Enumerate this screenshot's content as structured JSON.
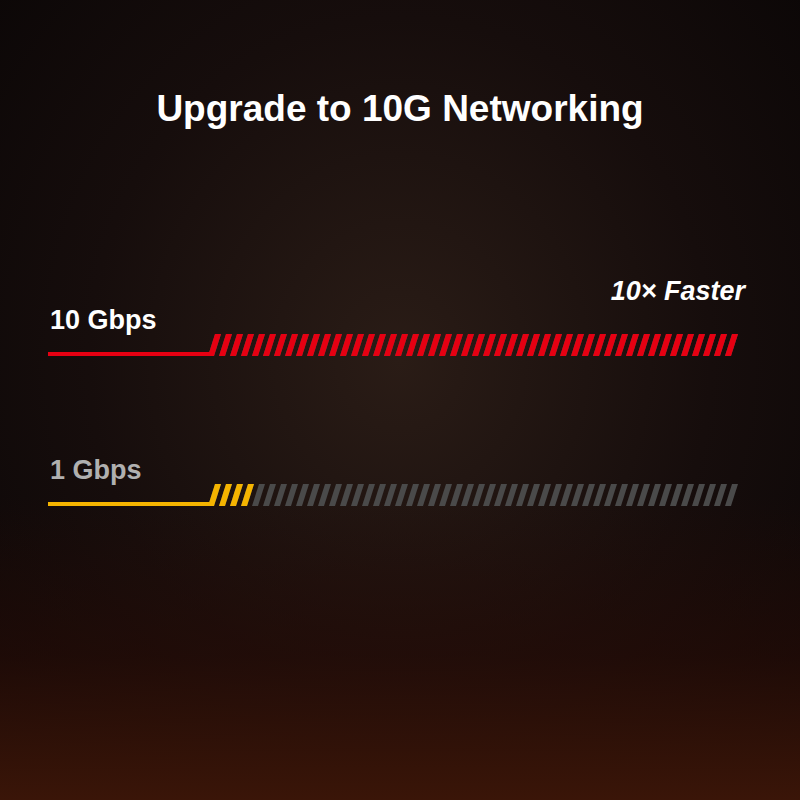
{
  "chart_data": {
    "type": "bar",
    "title": "Upgrade to 10G Networking",
    "orientation": "horizontal",
    "categories": [
      "10 Gbps",
      "1 Gbps"
    ],
    "values": [
      10,
      1
    ],
    "colors": [
      "#e60012",
      "#f5b400"
    ],
    "xlim": [
      0,
      10
    ],
    "annotation": "10× Faster",
    "tick_labels": "y",
    "grid": false
  }
}
